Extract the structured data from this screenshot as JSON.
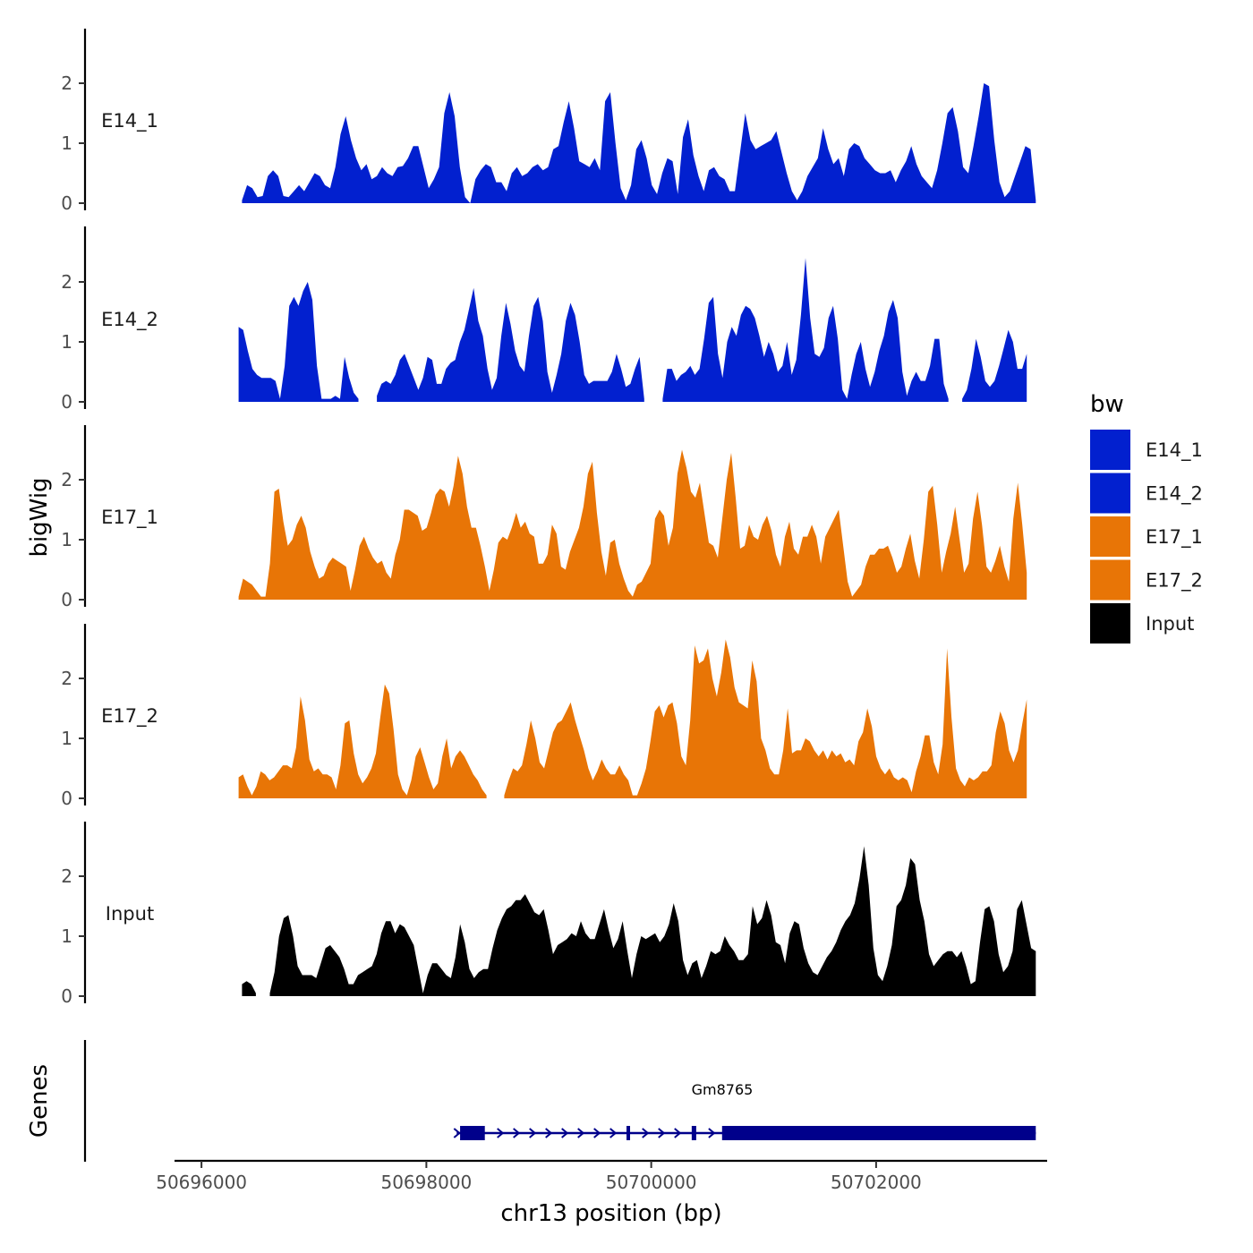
{
  "chart_data": {
    "type": "area",
    "title": "",
    "ylabel": "bigWig",
    "xlabel": "chr13 position (bp)",
    "xlim": [
      50695800,
      50703760
    ],
    "ylim": [
      0,
      2.9
    ],
    "yticks": [
      0,
      1,
      2
    ],
    "xticks": [
      50696000,
      50698000,
      50700000,
      50702000
    ],
    "xtick_labels": [
      "50696000",
      "50698000",
      "50700000",
      "50702000"
    ],
    "legend": {
      "title": "bw",
      "position": "right",
      "entries": [
        {
          "name": "E14_1",
          "color": "#0220CF"
        },
        {
          "name": "E14_2",
          "color": "#0220CF"
        },
        {
          "name": "E17_1",
          "color": "#E87506"
        },
        {
          "name": "E17_2",
          "color": "#E87506"
        },
        {
          "name": "Input",
          "color": "#000000"
        }
      ]
    },
    "series": [
      {
        "name": "E14_1",
        "label": "E14_1",
        "color": "#0220CF",
        "x_start": 50696360,
        "x_end": 50703420,
        "values": [
          0.05,
          0.3,
          0.25,
          0.1,
          0.12,
          0.45,
          0.55,
          0.45,
          0.12,
          0.1,
          0.2,
          0.3,
          0.2,
          0.35,
          0.5,
          0.45,
          0.3,
          0.25,
          0.6,
          1.15,
          1.45,
          1.05,
          0.75,
          0.55,
          0.65,
          0.4,
          0.45,
          0.6,
          0.5,
          0.45,
          0.6,
          0.62,
          0.75,
          0.95,
          0.95,
          0.6,
          0.25,
          0.4,
          0.6,
          1.5,
          1.85,
          1.45,
          0.6,
          0.1,
          0,
          0.4,
          0.55,
          0.65,
          0.6,
          0.35,
          0.35,
          0.2,
          0.5,
          0.6,
          0.45,
          0.5,
          0.6,
          0.65,
          0.55,
          0.6,
          0.9,
          0.95,
          1.35,
          1.7,
          1.25,
          0.7,
          0.65,
          0.6,
          0.75,
          0.55,
          1.7,
          1.85,
          1.0,
          0.25,
          0.05,
          0.3,
          0.9,
          1.05,
          0.75,
          0.3,
          0.15,
          0.5,
          0.75,
          0.7,
          0.15,
          1.1,
          1.4,
          0.8,
          0.45,
          0.2,
          0.55,
          0.6,
          0.45,
          0.4,
          0.2,
          0.2,
          0.85,
          1.5,
          1.05,
          0.9,
          0.95,
          1.0,
          1.05,
          1.2,
          0.85,
          0.5,
          0.2,
          0.05,
          0.2,
          0.45,
          0.6,
          0.75,
          1.25,
          0.9,
          0.65,
          0.75,
          0.45,
          0.9,
          1.0,
          0.95,
          0.75,
          0.65,
          0.55,
          0.5,
          0.5,
          0.55,
          0.35,
          0.55,
          0.7,
          0.95,
          0.65,
          0.45,
          0.35,
          0.25,
          0.55,
          1.0,
          1.5,
          1.6,
          1.2,
          0.6,
          0.5,
          0.95,
          1.45,
          2.0,
          1.95,
          1.05,
          0.35,
          0.1,
          0.2,
          0.45,
          0.7,
          0.95,
          0.9,
          0.05
        ]
      },
      {
        "name": "E14_2",
        "label": "E14_2",
        "color": "#0220CF",
        "x_start": 50696330,
        "x_end": 50703340,
        "values": [
          1.25,
          1.2,
          0.85,
          0.55,
          0.45,
          0.4,
          0.4,
          0.4,
          0.35,
          0.05,
          0.6,
          1.6,
          1.75,
          1.6,
          1.85,
          2.0,
          1.7,
          0.6,
          0.05,
          0.05,
          0.05,
          0.1,
          0.05,
          0.75,
          0.4,
          0.15,
          0.05,
          null,
          null,
          null,
          0.1,
          0.3,
          0.35,
          0.3,
          0.45,
          0.7,
          0.8,
          0.6,
          0.4,
          0.2,
          0.4,
          0.75,
          0.7,
          0.3,
          0.3,
          0.55,
          0.65,
          0.7,
          1.0,
          1.2,
          1.55,
          1.9,
          1.35,
          1.1,
          0.55,
          0.2,
          0.4,
          1.1,
          1.65,
          1.3,
          0.85,
          0.6,
          0.5,
          1.1,
          1.6,
          1.75,
          1.35,
          0.5,
          0.15,
          0.45,
          0.8,
          1.35,
          1.65,
          1.45,
          1.0,
          0.45,
          0.3,
          0.35,
          0.35,
          0.35,
          0.35,
          0.5,
          0.8,
          0.55,
          0.25,
          0.3,
          0.55,
          0.75,
          0.05,
          null,
          null,
          null,
          0.05,
          0.55,
          0.55,
          0.35,
          0.45,
          0.5,
          0.6,
          0.45,
          0.55,
          1.05,
          1.65,
          1.75,
          0.8,
          0.4,
          1.0,
          1.25,
          1.1,
          1.45,
          1.6,
          1.55,
          1.4,
          1.1,
          0.75,
          1.0,
          0.8,
          0.5,
          0.6,
          1.0,
          0.45,
          0.7,
          1.45,
          2.4,
          1.4,
          0.8,
          0.75,
          0.9,
          1.4,
          1.6,
          1.05,
          0.2,
          0.05,
          0.45,
          0.8,
          1.0,
          0.55,
          0.25,
          0.5,
          0.85,
          1.1,
          1.5,
          1.7,
          1.4,
          0.5,
          0.1,
          0.35,
          0.5,
          0.35,
          0.35,
          0.6,
          1.05,
          1.05,
          0.3,
          0.05,
          null,
          null,
          0.05,
          0.2,
          0.55,
          1.05,
          0.75,
          0.35,
          0.25,
          0.35,
          0.6,
          0.9,
          1.2,
          1.0,
          0.55,
          0.55,
          0.8
        ]
      },
      {
        "name": "E17_1",
        "label": "E17_1",
        "color": "#E87506",
        "x_start": 50696330,
        "x_end": 50703340,
        "values": [
          0.05,
          0.35,
          0.3,
          0.25,
          0.15,
          0.05,
          0.05,
          0.6,
          1.8,
          1.85,
          1.3,
          0.9,
          1.0,
          1.25,
          1.4,
          1.2,
          0.8,
          0.55,
          0.35,
          0.4,
          0.6,
          0.7,
          0.65,
          0.6,
          0.55,
          0.15,
          0.5,
          0.9,
          1.05,
          0.85,
          0.7,
          0.6,
          0.65,
          0.45,
          0.35,
          0.75,
          1.0,
          1.5,
          1.5,
          1.45,
          1.4,
          1.15,
          1.2,
          1.45,
          1.75,
          1.85,
          1.8,
          1.55,
          1.9,
          2.4,
          2.1,
          1.55,
          1.2,
          1.2,
          0.9,
          0.55,
          0.15,
          0.5,
          0.95,
          1.05,
          1.0,
          1.2,
          1.45,
          1.2,
          1.3,
          1.1,
          1.05,
          0.6,
          0.6,
          0.75,
          1.25,
          1.1,
          0.55,
          0.5,
          0.8,
          1.0,
          1.2,
          1.55,
          2.1,
          2.3,
          1.45,
          0.8,
          0.4,
          0.95,
          1.0,
          0.6,
          0.35,
          0.15,
          0.05,
          0.25,
          0.3,
          0.45,
          0.6,
          1.35,
          1.5,
          1.4,
          0.9,
          1.2,
          2.1,
          2.5,
          2.2,
          1.8,
          1.7,
          1.95,
          1.45,
          0.95,
          0.9,
          0.7,
          1.35,
          2.0,
          2.45,
          1.7,
          0.85,
          0.9,
          1.25,
          1.05,
          1.0,
          1.25,
          1.4,
          1.15,
          0.75,
          0.55,
          1.05,
          1.3,
          0.85,
          0.75,
          1.05,
          1.05,
          1.25,
          1.05,
          0.6,
          1.05,
          1.2,
          1.35,
          1.5,
          0.9,
          0.3,
          0.05,
          0.15,
          0.25,
          0.55,
          0.75,
          0.75,
          0.85,
          0.85,
          0.9,
          0.7,
          0.45,
          0.55,
          0.85,
          1.1,
          0.65,
          0.35,
          1.0,
          1.8,
          1.9,
          1.25,
          0.45,
          0.8,
          1.1,
          1.55,
          1.0,
          0.45,
          0.6,
          1.35,
          1.8,
          1.25,
          0.55,
          0.45,
          0.65,
          0.9,
          0.55,
          0.3,
          1.35,
          1.95,
          1.25,
          0.45
        ]
      },
      {
        "name": "E17_2",
        "label": "E17_2",
        "color": "#E87506",
        "x_start": 50696330,
        "x_end": 50703340,
        "values": [
          0.35,
          0.4,
          0.2,
          0.05,
          0.2,
          0.45,
          0.4,
          0.3,
          0.35,
          0.45,
          0.55,
          0.55,
          0.5,
          0.85,
          1.7,
          1.3,
          0.65,
          0.45,
          0.5,
          0.4,
          0.4,
          0.35,
          0.15,
          0.55,
          1.25,
          1.3,
          0.75,
          0.4,
          0.25,
          0.35,
          0.5,
          0.75,
          1.35,
          1.9,
          1.75,
          1.15,
          0.4,
          0.15,
          0.05,
          0.3,
          0.7,
          0.85,
          0.6,
          0.35,
          0.15,
          0.25,
          0.7,
          1.0,
          0.5,
          0.7,
          0.8,
          0.7,
          0.55,
          0.4,
          0.3,
          0.15,
          0.05,
          null,
          null,
          null,
          0.05,
          0.3,
          0.5,
          0.45,
          0.55,
          0.9,
          1.3,
          1.0,
          0.6,
          0.5,
          0.8,
          1.1,
          1.25,
          1.3,
          1.45,
          1.6,
          1.3,
          1.05,
          0.8,
          0.5,
          0.3,
          0.45,
          0.65,
          0.5,
          0.4,
          0.4,
          0.55,
          0.4,
          0.3,
          0.05,
          0.05,
          0.25,
          0.5,
          0.95,
          1.45,
          1.55,
          1.35,
          1.55,
          1.6,
          1.25,
          0.7,
          0.55,
          1.3,
          2.55,
          2.25,
          2.3,
          2.5,
          2.0,
          1.7,
          2.1,
          2.65,
          2.35,
          1.85,
          1.6,
          1.55,
          1.5,
          2.3,
          1.95,
          1.0,
          0.8,
          0.5,
          0.4,
          0.4,
          0.8,
          1.5,
          0.75,
          0.8,
          0.8,
          1.0,
          0.95,
          0.8,
          0.7,
          0.8,
          0.65,
          0.8,
          0.7,
          0.75,
          0.6,
          0.65,
          0.55,
          0.95,
          1.1,
          1.5,
          1.2,
          0.7,
          0.5,
          0.4,
          0.5,
          0.35,
          0.3,
          0.35,
          0.3,
          0.1,
          0.45,
          0.7,
          1.05,
          1.05,
          0.6,
          0.4,
          0.9,
          2.5,
          1.35,
          0.5,
          0.3,
          0.2,
          0.35,
          0.3,
          0.35,
          0.45,
          0.45,
          0.55,
          1.1,
          1.45,
          1.25,
          0.8,
          0.6,
          0.8,
          1.25,
          1.65
        ]
      },
      {
        "name": "Input",
        "label": "Input",
        "color": "#000000",
        "x_start": 50696360,
        "x_end": 50703420,
        "values": [
          0.2,
          0.25,
          0.2,
          0.05,
          null,
          null,
          0.05,
          0.4,
          1.0,
          1.3,
          1.35,
          1.0,
          0.5,
          0.35,
          0.35,
          0.35,
          0.3,
          0.55,
          0.8,
          0.85,
          0.75,
          0.65,
          0.45,
          0.2,
          0.2,
          0.35,
          0.4,
          0.45,
          0.5,
          0.7,
          1.05,
          1.25,
          1.25,
          1.05,
          1.2,
          1.15,
          1.0,
          0.85,
          0.45,
          0.05,
          0.35,
          0.55,
          0.55,
          0.45,
          0.35,
          0.3,
          0.65,
          1.2,
          0.9,
          0.45,
          0.3,
          0.4,
          0.45,
          0.45,
          0.8,
          1.1,
          1.3,
          1.45,
          1.5,
          1.6,
          1.6,
          1.7,
          1.55,
          1.4,
          1.35,
          1.45,
          1.1,
          0.7,
          0.85,
          0.9,
          0.95,
          1.05,
          1.0,
          1.25,
          1.05,
          0.95,
          0.95,
          1.2,
          1.45,
          1.1,
          0.8,
          0.95,
          1.25,
          0.75,
          0.3,
          0.7,
          1.0,
          0.95,
          1.0,
          1.05,
          0.9,
          1.0,
          1.2,
          1.55,
          1.25,
          0.6,
          0.35,
          0.55,
          0.6,
          0.3,
          0.5,
          0.75,
          0.7,
          0.75,
          1.0,
          0.85,
          0.75,
          0.6,
          0.6,
          0.7,
          1.5,
          1.2,
          1.3,
          1.6,
          1.35,
          0.9,
          0.85,
          0.55,
          1.05,
          1.25,
          1.2,
          0.8,
          0.55,
          0.4,
          0.35,
          0.5,
          0.65,
          0.75,
          0.9,
          1.1,
          1.25,
          1.35,
          1.55,
          1.95,
          2.5,
          1.85,
          0.8,
          0.35,
          0.25,
          0.5,
          0.85,
          1.5,
          1.6,
          1.85,
          2.3,
          2.2,
          1.6,
          1.25,
          0.7,
          0.5,
          0.6,
          0.7,
          0.75,
          0.75,
          0.65,
          0.75,
          0.5,
          0.2,
          0.25,
          0.9,
          1.45,
          1.5,
          1.25,
          0.7,
          0.4,
          0.5,
          0.75,
          1.45,
          1.6,
          1.2,
          0.8,
          0.75
        ]
      }
    ],
    "genes": {
      "title": "Genes",
      "items": [
        {
          "name": "Gm8765",
          "start": 50698270,
          "end": 50703420,
          "strand": "+",
          "exons": [
            [
              50698300,
              50698520
            ],
            [
              50699780,
              50699810
            ],
            [
              50700360,
              50700400
            ],
            [
              50700630,
              50703420
            ]
          ]
        }
      ]
    }
  }
}
